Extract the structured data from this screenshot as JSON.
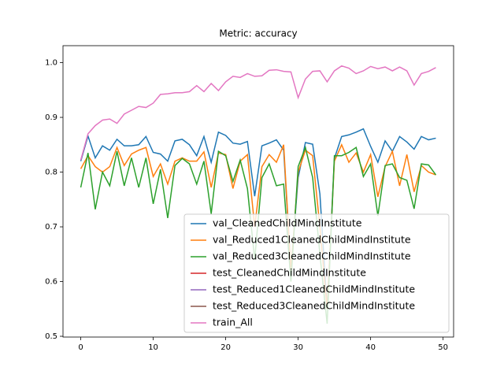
{
  "chart_data": {
    "type": "line",
    "title": "Metric: accuracy",
    "x": [
      0,
      1,
      2,
      3,
      4,
      5,
      6,
      7,
      8,
      9,
      10,
      11,
      12,
      13,
      14,
      15,
      16,
      17,
      18,
      19,
      20,
      21,
      22,
      23,
      24,
      25,
      26,
      27,
      28,
      29,
      30,
      31,
      32,
      33,
      34,
      35,
      36,
      37,
      38,
      39,
      40,
      41,
      42,
      43,
      44,
      45,
      46,
      47,
      48,
      49
    ],
    "xlim": [
      -2.45,
      51.45
    ],
    "xticks": [
      0,
      10,
      20,
      30,
      40,
      50
    ],
    "ylim": [
      0.4986,
      1.031
    ],
    "yticks": [
      0.5,
      0.6,
      0.7,
      0.8,
      0.9,
      {
        "value": 1,
        "label": "1.0"
      }
    ],
    "legend": "lower right",
    "series": [
      {
        "name": "val_CleanedChildMindInstitute",
        "color": "#1f77b4",
        "values": [
          0.82,
          0.866,
          0.826,
          0.848,
          0.84,
          0.86,
          0.848,
          0.848,
          0.85,
          0.865,
          0.836,
          0.833,
          0.82,
          0.857,
          0.86,
          0.85,
          0.83,
          0.865,
          0.818,
          0.873,
          0.867,
          0.853,
          0.851,
          0.856,
          0.756,
          0.848,
          0.853,
          0.859,
          0.84,
          0.62,
          0.79,
          0.854,
          0.851,
          0.76,
          0.55,
          0.825,
          0.865,
          0.868,
          0.873,
          0.879,
          0.847,
          0.818,
          0.857,
          0.838,
          0.865,
          0.855,
          0.842,
          0.865,
          0.859,
          0.862
        ]
      },
      {
        "name": "val_Reduced1CleanedChildMindInstitute",
        "color": "#ff7f0e",
        "values": [
          0.806,
          0.83,
          0.81,
          0.8,
          0.81,
          0.845,
          0.812,
          0.833,
          0.84,
          0.845,
          0.792,
          0.815,
          0.778,
          0.82,
          0.826,
          0.82,
          0.82,
          0.837,
          0.772,
          0.835,
          0.832,
          0.77,
          0.82,
          0.832,
          0.7,
          0.81,
          0.832,
          0.818,
          0.85,
          0.62,
          0.8,
          0.84,
          0.83,
          0.7,
          0.55,
          0.82,
          0.85,
          0.818,
          0.835,
          0.8,
          0.832,
          0.755,
          0.81,
          0.838,
          0.775,
          0.832,
          0.764,
          0.812,
          0.8,
          0.795
        ]
      },
      {
        "name": "val_Reduced3CleanedChildMindInstitute",
        "color": "#2ca02c",
        "values": [
          0.772,
          0.835,
          0.732,
          0.8,
          0.775,
          0.838,
          0.775,
          0.826,
          0.772,
          0.826,
          0.742,
          0.805,
          0.716,
          0.812,
          0.825,
          0.815,
          0.778,
          0.82,
          0.724,
          0.838,
          0.83,
          0.783,
          0.822,
          0.77,
          0.64,
          0.79,
          0.815,
          0.775,
          0.778,
          0.6,
          0.81,
          0.845,
          0.79,
          0.65,
          0.523,
          0.83,
          0.83,
          0.836,
          0.845,
          0.792,
          0.815,
          0.72,
          0.812,
          0.815,
          0.79,
          0.785,
          0.733,
          0.815,
          0.813,
          0.795
        ]
      },
      {
        "name": "test_CleanedChildMindInstitute",
        "color": "#d62728",
        "values": [
          null,
          null,
          null,
          null,
          null,
          null,
          null,
          null,
          null,
          null,
          null,
          null,
          null,
          null,
          null,
          null,
          null,
          null,
          null,
          null,
          null,
          null,
          null,
          null,
          null,
          null,
          null,
          null,
          null,
          null,
          null,
          null,
          null,
          null,
          null,
          null,
          null,
          null,
          null,
          null,
          null,
          null,
          null,
          null,
          null,
          null,
          null,
          null,
          null,
          null
        ]
      },
      {
        "name": "test_Reduced1CleanedChildMindInstitute",
        "color": "#9467bd",
        "values": [
          null,
          null,
          null,
          null,
          null,
          null,
          null,
          null,
          null,
          null,
          null,
          null,
          null,
          null,
          null,
          null,
          null,
          null,
          null,
          null,
          null,
          null,
          null,
          null,
          null,
          null,
          null,
          null,
          null,
          null,
          null,
          null,
          null,
          null,
          null,
          null,
          null,
          null,
          null,
          null,
          null,
          null,
          null,
          null,
          null,
          null,
          null,
          null,
          null,
          null
        ]
      },
      {
        "name": "test_Reduced3CleanedChildMindInstitute",
        "color": "#8c564b",
        "values": [
          null,
          null,
          null,
          null,
          null,
          null,
          null,
          null,
          null,
          null,
          null,
          null,
          null,
          null,
          null,
          null,
          null,
          null,
          null,
          null,
          null,
          null,
          null,
          null,
          null,
          null,
          null,
          null,
          null,
          null,
          null,
          null,
          null,
          null,
          null,
          null,
          null,
          null,
          null,
          null,
          null,
          null,
          null,
          null,
          null,
          null,
          null,
          null,
          null,
          null
        ]
      },
      {
        "name": "train_All",
        "color": "#e377c2",
        "values": [
          0.822,
          0.87,
          0.885,
          0.895,
          0.897,
          0.889,
          0.906,
          0.913,
          0.92,
          0.918,
          0.926,
          0.942,
          0.943,
          0.945,
          0.945,
          0.947,
          0.958,
          0.947,
          0.962,
          0.949,
          0.965,
          0.975,
          0.973,
          0.98,
          0.975,
          0.976,
          0.986,
          0.987,
          0.984,
          0.983,
          0.936,
          0.97,
          0.984,
          0.985,
          0.965,
          0.985,
          0.994,
          0.99,
          0.98,
          0.985,
          0.993,
          0.989,
          0.992,
          0.985,
          0.992,
          0.985,
          0.959,
          0.98,
          0.984,
          0.991
        ]
      }
    ]
  }
}
